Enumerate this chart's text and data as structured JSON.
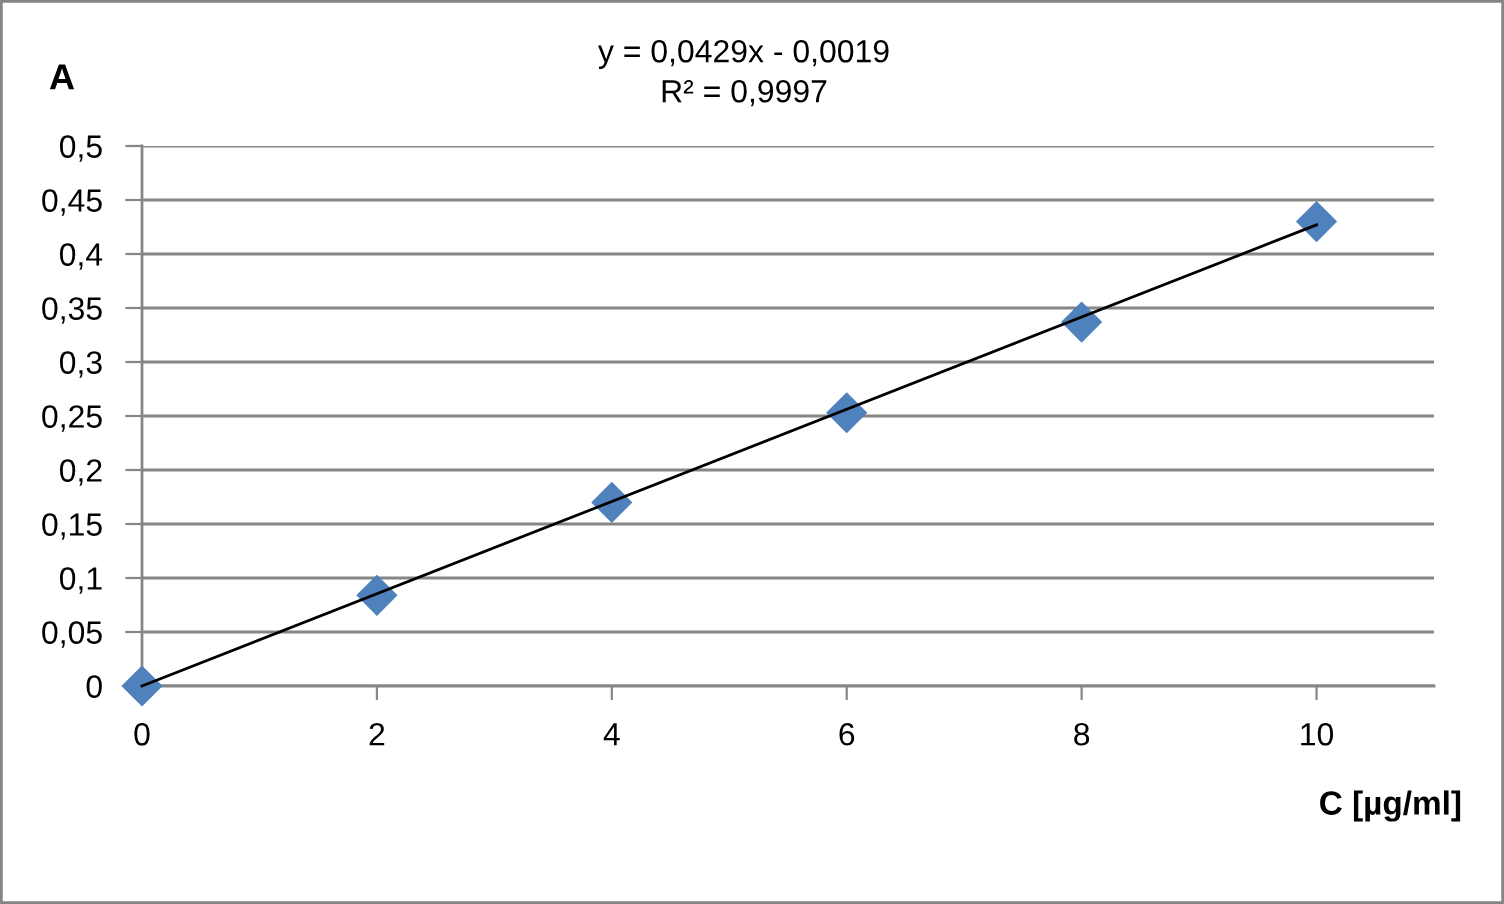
{
  "chart_data": {
    "type": "scatter",
    "annotations": [
      "y = 0,0429x - 0,0019",
      "R² = 0,9997"
    ],
    "xlabel": "C [µg/ml]",
    "ylabel": "A",
    "xlim": [
      0,
      11
    ],
    "xticks": [
      0,
      2,
      4,
      6,
      8,
      10
    ],
    "ylim": [
      0,
      0.5
    ],
    "yticks": [
      {
        "value": 0,
        "label": "0"
      },
      {
        "value": 0.05,
        "label": "0,05"
      },
      {
        "value": 0.1,
        "label": "0,1"
      },
      {
        "value": 0.15,
        "label": "0,15"
      },
      {
        "value": 0.2,
        "label": "0,2"
      },
      {
        "value": 0.25,
        "label": "0,25"
      },
      {
        "value": 0.3,
        "label": "0,3"
      },
      {
        "value": 0.35,
        "label": "0,35"
      },
      {
        "value": 0.4,
        "label": "0,4"
      },
      {
        "value": 0.45,
        "label": "0,45"
      },
      {
        "value": 0.5,
        "label": "0,5"
      }
    ],
    "grid": "y",
    "series": [
      {
        "color": "#4f81bd",
        "marker": "diamond",
        "x": [
          0,
          2,
          4,
          6,
          8,
          10
        ],
        "values": [
          0,
          0.084,
          0.17,
          0.253,
          0.337,
          0.43
        ]
      },
      {
        "type": "line",
        "color": "#000000",
        "x": [
          0,
          10
        ],
        "values": [
          0,
          0.427
        ],
        "line_style": "solid"
      }
    ]
  }
}
